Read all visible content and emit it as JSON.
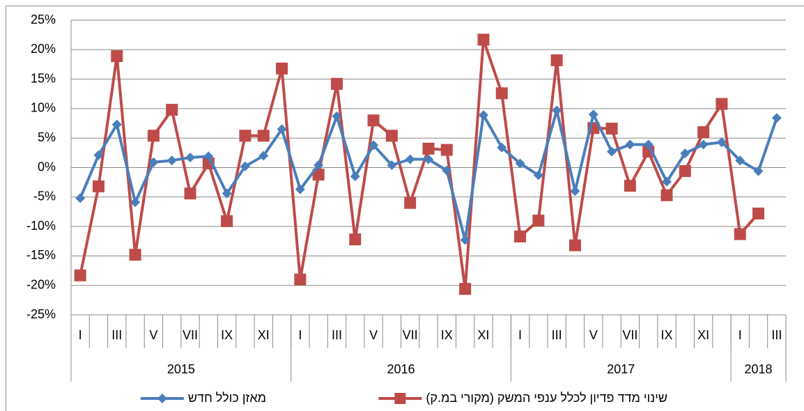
{
  "chart_data": {
    "type": "line",
    "categories": [
      "I",
      null,
      "III",
      null,
      "V",
      null,
      "VII",
      null,
      "IX",
      null,
      "XI",
      null,
      "I",
      null,
      "III",
      null,
      "V",
      null,
      "VII",
      null,
      "IX",
      null,
      "XI",
      null,
      "I",
      null,
      "III",
      null,
      "V",
      null,
      "VII",
      null,
      "IX",
      null,
      "XI",
      null,
      "I",
      null,
      "III"
    ],
    "years": [
      "2015",
      "2016",
      "2017",
      "2018"
    ],
    "series": [
      {
        "name": "מאזן כולל חדש",
        "color": "#4a7ebb",
        "marker": "diamond",
        "values": [
          -5.2,
          2.1,
          7.3,
          -5.9,
          0.9,
          1.2,
          1.7,
          1.9,
          -4.4,
          0.2,
          2.0,
          6.5,
          -3.7,
          0.4,
          8.7,
          -1.5,
          3.8,
          0.4,
          1.4,
          1.4,
          -0.5,
          -12.3,
          8.9,
          3.4,
          0.7,
          -1.3,
          9.7,
          -4.0,
          9.0,
          2.7,
          3.9,
          3.9,
          -2.4,
          2.4,
          3.9,
          4.3,
          1.2,
          -0.6,
          8.4
        ]
      },
      {
        "name": "שינוי מדד פדיון לכלל ענפי המשק (מקורי במ.ק)",
        "color": "#be4b48",
        "marker": "square",
        "values": [
          -18.3,
          -3.2,
          18.9,
          -14.8,
          5.4,
          9.8,
          -4.4,
          0.7,
          -9.1,
          5.4,
          5.4,
          16.8,
          -19.0,
          -1.2,
          14.2,
          -12.2,
          8.0,
          5.4,
          -6.0,
          3.2,
          3.0,
          -20.6,
          21.7,
          12.6,
          -11.7,
          -9.0,
          18.2,
          -13.2,
          6.7,
          6.6,
          -3.1,
          2.7,
          -4.7,
          -0.6,
          6.0,
          10.8,
          -11.3,
          -7.8,
          null
        ]
      }
    ],
    "ylim": [
      -25,
      25
    ],
    "yticks": [
      {
        "value": -25,
        "label": "-25%"
      },
      {
        "value": -20,
        "label": "-20%"
      },
      {
        "value": -15,
        "label": "-15%"
      },
      {
        "value": -10,
        "label": "-10%"
      },
      {
        "value": -5,
        "label": "-5%"
      },
      {
        "value": 0,
        "label": "0%"
      },
      {
        "value": 5,
        "label": "5%"
      },
      {
        "value": 10,
        "label": "10%"
      },
      {
        "value": 15,
        "label": "15%"
      },
      {
        "value": 20,
        "label": "20%"
      },
      {
        "value": 25,
        "label": "25%"
      }
    ],
    "grid": true,
    "legend": "bottom"
  }
}
